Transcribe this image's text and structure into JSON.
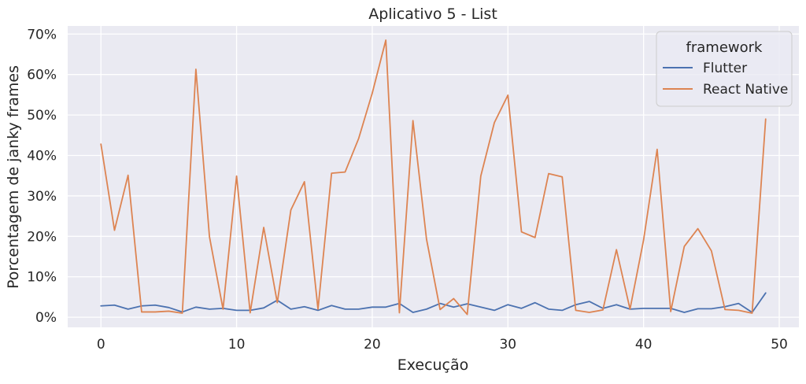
{
  "chart_data": {
    "type": "line",
    "title": "Aplicativo 5 - List",
    "xlabel": "Execução",
    "ylabel": "Porcentagem de janky frames",
    "xlim": [
      -2.45,
      51.45
    ],
    "ylim": [
      -2.5,
      72
    ],
    "x_ticks": [
      0,
      10,
      20,
      30,
      40,
      50
    ],
    "x_tick_labels": [
      "0",
      "10",
      "20",
      "30",
      "40",
      "50"
    ],
    "y_ticks": [
      0,
      10,
      20,
      30,
      40,
      50,
      60,
      70
    ],
    "y_tick_labels": [
      "0%",
      "10%",
      "20%",
      "30%",
      "40%",
      "50%",
      "60%",
      "70%"
    ],
    "grid": true,
    "legend": {
      "title": "framework",
      "placement": "top-right"
    },
    "x": [
      0,
      1,
      2,
      3,
      4,
      5,
      6,
      7,
      8,
      9,
      10,
      11,
      12,
      13,
      14,
      15,
      16,
      17,
      18,
      19,
      20,
      21,
      22,
      23,
      24,
      25,
      26,
      27,
      28,
      29,
      30,
      31,
      32,
      33,
      34,
      35,
      36,
      37,
      38,
      39,
      40,
      41,
      42,
      43,
      44,
      45,
      46,
      47,
      48,
      49
    ],
    "series": [
      {
        "name": "Flutter",
        "color": "#4c72b0",
        "values": [
          2.8,
          3.0,
          2.0,
          2.8,
          3.0,
          2.4,
          1.3,
          2.5,
          2.0,
          2.2,
          1.7,
          1.7,
          2.3,
          4.2,
          2.0,
          2.6,
          1.7,
          2.9,
          2.0,
          2.0,
          2.5,
          2.5,
          3.4,
          1.2,
          2.0,
          3.4,
          2.5,
          3.3,
          2.5,
          1.7,
          3.1,
          2.2,
          3.6,
          2.0,
          1.7,
          3.1,
          3.9,
          2.2,
          3.1,
          2.0,
          2.2,
          2.2,
          2.2,
          1.2,
          2.1,
          2.1,
          2.6,
          3.4,
          1.2,
          6.0
        ]
      },
      {
        "name": "React Native",
        "color": "#dd8452",
        "values": [
          42.8,
          21.5,
          35.1,
          1.3,
          1.3,
          1.5,
          1.0,
          61.3,
          19.9,
          2.0,
          34.9,
          1.1,
          22.2,
          3.6,
          26.5,
          33.5,
          2.0,
          35.6,
          35.9,
          44.2,
          55.4,
          68.5,
          1.1,
          48.6,
          19.3,
          1.9,
          4.6,
          0.7,
          34.9,
          48.1,
          54.9,
          21.1,
          19.7,
          35.5,
          34.7,
          1.7,
          1.2,
          1.8,
          16.7,
          2.0,
          19.1,
          41.5,
          1.4,
          17.5,
          21.9,
          16.4,
          1.9,
          1.7,
          1.0,
          49.0
        ]
      }
    ]
  }
}
